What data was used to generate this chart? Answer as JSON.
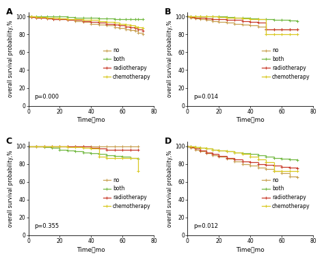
{
  "panels": [
    {
      "label": "A",
      "pvalue": "p=0.000",
      "curves": {
        "no": {
          "color": "#c8a050",
          "times": [
            0,
            2,
            5,
            8,
            12,
            16,
            20,
            25,
            30,
            35,
            40,
            45,
            50,
            55,
            58,
            62,
            65,
            68,
            70,
            73
          ],
          "surv": [
            100,
            99.5,
            99,
            98.5,
            98,
            97.5,
            97,
            96,
            95,
            94,
            92,
            91,
            90,
            88,
            87,
            86,
            85,
            84,
            82,
            80
          ]
        },
        "both": {
          "color": "#70b840",
          "times": [
            0,
            2,
            5,
            8,
            12,
            16,
            20,
            25,
            30,
            35,
            40,
            45,
            50,
            55,
            58,
            62,
            65,
            68,
            70,
            73
          ],
          "surv": [
            100,
            100,
            100,
            100,
            100,
            100,
            100,
            99.5,
            99,
            99,
            98.5,
            98,
            98,
            97.5,
            97.5,
            97,
            97,
            97,
            97,
            97
          ]
        },
        "radiotherapy": {
          "color": "#c83828",
          "times": [
            0,
            2,
            5,
            8,
            12,
            16,
            20,
            25,
            30,
            35,
            40,
            45,
            50,
            55,
            58,
            62,
            65,
            68,
            70,
            73
          ],
          "surv": [
            100,
            99.5,
            99,
            98.5,
            98,
            97.5,
            97,
            96.5,
            96,
            95,
            94,
            93,
            92,
            91,
            90,
            89,
            88,
            87,
            86,
            84
          ]
        },
        "chemotherapy": {
          "color": "#d8c820",
          "times": [
            0,
            2,
            5,
            8,
            12,
            16,
            20,
            25,
            30,
            35,
            40,
            45,
            50,
            55,
            58,
            62,
            65,
            68,
            70,
            73
          ],
          "surv": [
            100,
            100,
            99.8,
            99.5,
            99,
            98.5,
            98,
            97.5,
            97,
            96.5,
            96,
            95,
            94,
            93,
            92,
            91,
            90,
            89,
            88,
            87
          ]
        }
      }
    },
    {
      "label": "B",
      "pvalue": "p=0.014",
      "curves": {
        "no": {
          "color": "#c8a050",
          "times": [
            0,
            2,
            5,
            8,
            12,
            16,
            20,
            25,
            30,
            35,
            40,
            45,
            50,
            55,
            60,
            65,
            70
          ],
          "surv": [
            100,
            99,
            98,
            97,
            96,
            95,
            94,
            93,
            92,
            91,
            90,
            89,
            86,
            86,
            86,
            86,
            86
          ]
        },
        "both": {
          "color": "#70b840",
          "times": [
            0,
            2,
            5,
            8,
            12,
            16,
            20,
            25,
            30,
            35,
            40,
            45,
            50,
            55,
            60,
            65,
            70
          ],
          "surv": [
            100,
            100,
            100,
            100,
            100,
            100,
            100,
            99.5,
            99,
            98.5,
            98,
            97.5,
            97,
            96.5,
            96,
            95.5,
            95
          ]
        },
        "radiotherapy": {
          "color": "#c83828",
          "times": [
            0,
            2,
            5,
            8,
            12,
            16,
            20,
            25,
            30,
            35,
            40,
            45,
            50,
            55,
            60,
            65,
            70
          ],
          "surv": [
            100,
            99.5,
            99,
            98.5,
            98,
            97.5,
            97,
            96.5,
            96,
            95,
            94,
            93,
            86,
            86,
            86,
            86,
            86
          ]
        },
        "chemotherapy": {
          "color": "#d8c820",
          "times": [
            0,
            2,
            5,
            8,
            12,
            16,
            20,
            25,
            30,
            35,
            40,
            45,
            50,
            55,
            60,
            65,
            70
          ],
          "surv": [
            100,
            100,
            100,
            100,
            100,
            100,
            99.5,
            99,
            98.5,
            98,
            97.5,
            97,
            80,
            80,
            80,
            80,
            80
          ]
        }
      }
    },
    {
      "label": "C",
      "pvalue": "p=0.355",
      "curves": {
        "no": {
          "color": "#c8a050",
          "times": [
            0,
            5,
            10,
            15,
            20,
            25,
            30,
            35,
            40,
            45,
            50,
            55,
            60,
            65,
            70
          ],
          "surv": [
            100,
            100,
            100,
            100,
            100,
            100,
            100,
            100,
            100,
            100,
            100,
            100,
            100,
            100,
            100
          ]
        },
        "both": {
          "color": "#70b840",
          "times": [
            0,
            5,
            10,
            15,
            20,
            25,
            30,
            35,
            40,
            45,
            50,
            55,
            60,
            65,
            70
          ],
          "surv": [
            100,
            100,
            99,
            98,
            96,
            95,
            94,
            93,
            92,
            91,
            90,
            89,
            88,
            87,
            86
          ]
        },
        "radiotherapy": {
          "color": "#c83828",
          "times": [
            0,
            5,
            10,
            15,
            20,
            25,
            30,
            35,
            40,
            45,
            50,
            55,
            60,
            65,
            70
          ],
          "surv": [
            100,
            100,
            100,
            100,
            100,
            100,
            100,
            100,
            98,
            97,
            96,
            96,
            96,
            96,
            96
          ]
        },
        "chemotherapy": {
          "color": "#d8c820",
          "times": [
            0,
            5,
            10,
            15,
            20,
            25,
            30,
            35,
            40,
            45,
            50,
            55,
            60,
            65,
            70
          ],
          "surv": [
            100,
            100,
            100,
            100,
            100,
            99,
            99,
            98,
            97,
            88,
            87,
            87,
            87,
            87,
            72
          ]
        }
      }
    },
    {
      "label": "D",
      "pvalue": "p=0.012",
      "curves": {
        "no": {
          "color": "#c8a050",
          "times": [
            0,
            2,
            5,
            8,
            12,
            16,
            20,
            25,
            30,
            35,
            40,
            45,
            50,
            55,
            60,
            65,
            70
          ],
          "surv": [
            100,
            98,
            96,
            94,
            92,
            90,
            88,
            86,
            83,
            80,
            78,
            76,
            74,
            72,
            70,
            66,
            65
          ]
        },
        "both": {
          "color": "#70b840",
          "times": [
            0,
            2,
            5,
            8,
            12,
            16,
            20,
            25,
            30,
            35,
            40,
            45,
            50,
            55,
            60,
            65,
            70
          ],
          "surv": [
            100,
            100,
            99,
            98,
            97,
            96,
            95,
            94,
            93,
            92,
            91,
            90,
            88,
            87,
            86,
            85,
            84
          ]
        },
        "radiotherapy": {
          "color": "#c83828",
          "times": [
            0,
            2,
            5,
            8,
            12,
            16,
            20,
            25,
            30,
            35,
            40,
            45,
            50,
            55,
            60,
            65,
            70
          ],
          "surv": [
            100,
            99,
            97,
            95,
            93,
            91,
            89,
            87,
            85,
            83,
            82,
            80,
            79,
            78,
            77,
            76,
            75
          ]
        },
        "chemotherapy": {
          "color": "#d8c820",
          "times": [
            0,
            2,
            5,
            8,
            12,
            16,
            20,
            25,
            30,
            35,
            40,
            45,
            50,
            55,
            60,
            65,
            70
          ],
          "surv": [
            100,
            99.5,
            99,
            98,
            97,
            96,
            95,
            94,
            93,
            91,
            88,
            85,
            82,
            72,
            72,
            72,
            72
          ]
        }
      }
    }
  ],
  "xlabel": "Time，mo",
  "ylabel": "overall survival probability,%",
  "xlim": [
    0,
    75
  ],
  "ylim": [
    0,
    105
  ],
  "yticks": [
    0,
    20,
    40,
    60,
    80,
    100
  ],
  "xticks": [
    0,
    20,
    40,
    60,
    80
  ],
  "legend_order": [
    "no",
    "both",
    "radiotherapy",
    "chemotherapy"
  ],
  "legend_colors": {
    "no": "#c8a050",
    "both": "#70b840",
    "radiotherapy": "#c83828",
    "chemotherapy": "#d8c820"
  },
  "bg_color": "#ffffff"
}
